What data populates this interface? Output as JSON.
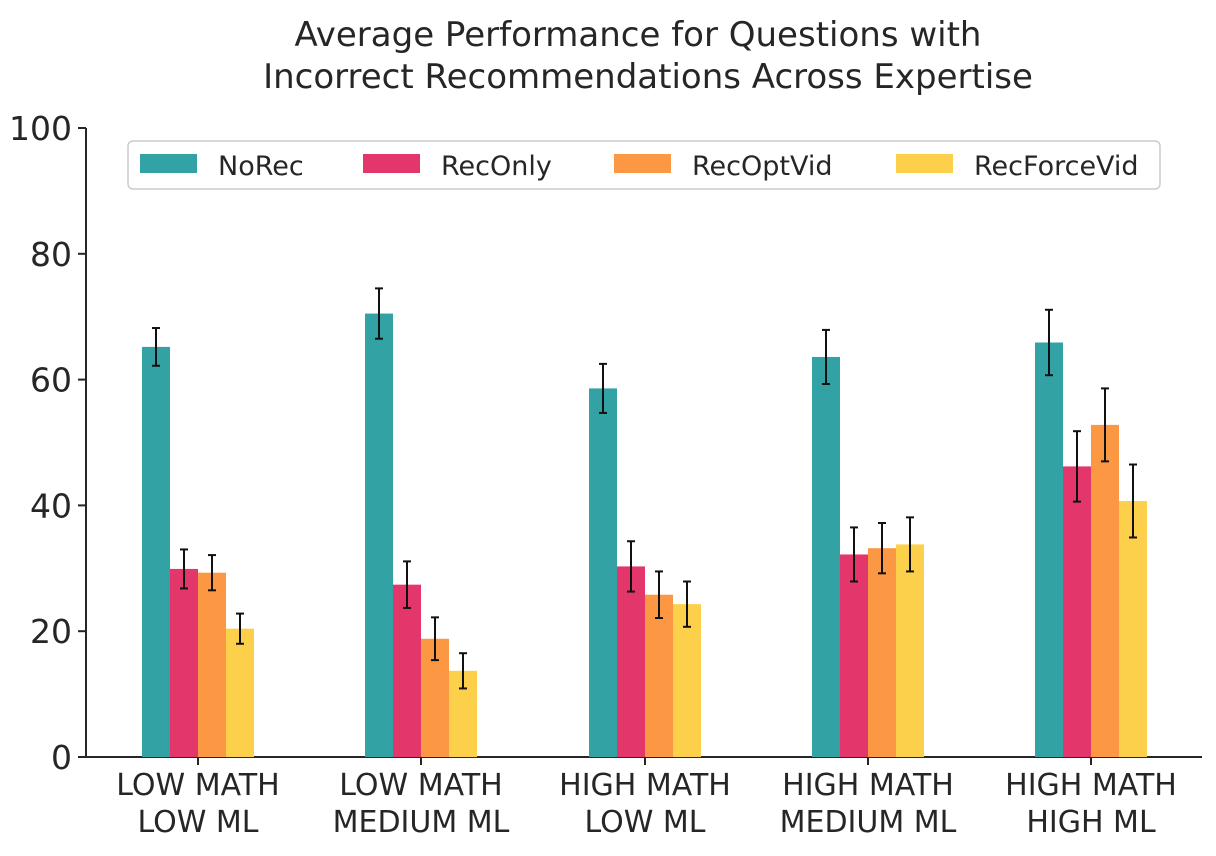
{
  "chart_data": {
    "type": "bar",
    "title": [
      "Average Performance for Questions with",
      "Incorrect Recommendations Across Expertise"
    ],
    "xlabel": "",
    "ylabel": "",
    "ylim": [
      0,
      100
    ],
    "yticks": [
      0,
      20,
      40,
      60,
      80,
      100
    ],
    "grid": false,
    "legend_position": "top",
    "categories": [
      [
        "LOW MATH",
        "LOW ML"
      ],
      [
        "LOW MATH",
        "MEDIUM ML"
      ],
      [
        "HIGH MATH",
        "LOW ML"
      ],
      [
        "HIGH MATH",
        "MEDIUM  ML"
      ],
      [
        "HIGH MATH",
        "HIGH ML"
      ]
    ],
    "series": [
      {
        "name": "NoRec",
        "color": "#33a2a5",
        "values": [
          65.2,
          70.5,
          58.6,
          63.6,
          65.9
        ],
        "errors": [
          3.0,
          4.0,
          3.9,
          4.3,
          5.2
        ]
      },
      {
        "name": "RecOnly",
        "color": "#e3376c",
        "values": [
          29.9,
          27.4,
          30.3,
          32.2,
          46.2
        ],
        "errors": [
          3.1,
          3.7,
          4.0,
          4.3,
          5.6
        ]
      },
      {
        "name": "RecOptVid",
        "color": "#fc9844",
        "values": [
          29.3,
          18.8,
          25.8,
          33.2,
          52.8
        ],
        "errors": [
          2.8,
          3.4,
          3.7,
          4.0,
          5.8
        ]
      },
      {
        "name": "RecForceVid",
        "color": "#fdd04b",
        "values": [
          20.4,
          13.7,
          24.3,
          33.8,
          40.7
        ],
        "errors": [
          2.4,
          2.8,
          3.6,
          4.3,
          5.8
        ]
      }
    ]
  }
}
